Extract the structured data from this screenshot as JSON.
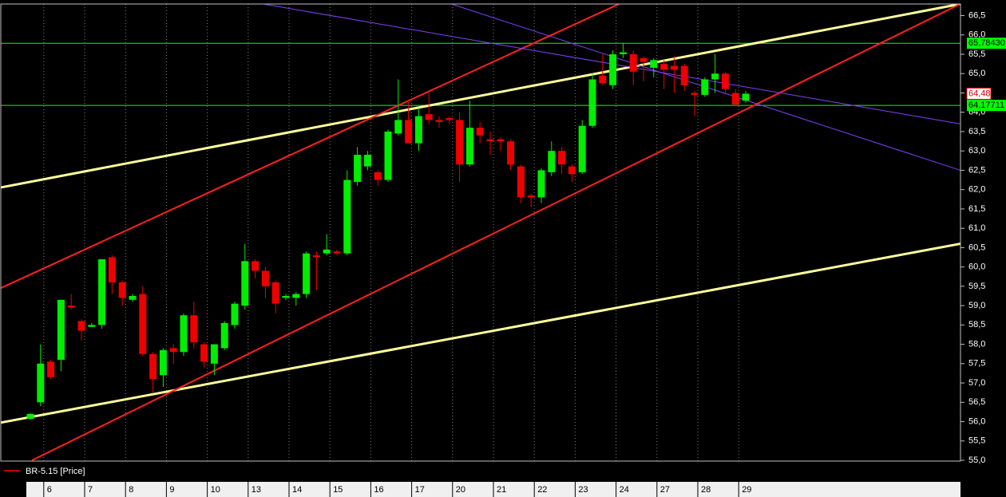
{
  "chart_data": {
    "type": "candlestick",
    "categories": [
      null,
      "6",
      null,
      null,
      null,
      "7",
      null,
      null,
      null,
      "8",
      null,
      null,
      null,
      "9",
      null,
      null,
      null,
      "10",
      null,
      null,
      null,
      "13",
      null,
      null,
      null,
      "14",
      null,
      null,
      null,
      "15",
      null,
      null,
      null,
      "16",
      null,
      null,
      null,
      "17",
      null,
      null,
      null,
      "20",
      null,
      null,
      null,
      "21",
      null,
      null,
      null,
      "22",
      null,
      null,
      null,
      "23",
      null,
      null,
      null,
      "24",
      null,
      null,
      null,
      "27",
      null,
      null,
      null,
      "28",
      null,
      null,
      null,
      "29",
      null
    ],
    "series": [
      {
        "name": "BR-5.15 [Price]",
        "color": "#ff0000",
        "up_color": "#00ee00",
        "down_color": "#ee0000",
        "open": [
          56.07,
          56.5,
          57.55,
          57.6,
          59.0,
          58.6,
          58.45,
          58.5,
          60.25,
          59.6,
          59.15,
          59.3,
          57.75,
          57.2,
          57.9,
          57.8,
          58.75,
          58.0,
          57.5,
          57.9,
          58.5,
          59.0,
          60.15,
          59.9,
          59.6,
          59.2,
          59.2,
          59.3,
          60.3,
          60.35,
          60.4,
          60.35,
          62.2,
          62.6,
          62.45,
          62.25,
          63.45,
          63.8,
          63.2,
          63.95,
          63.8,
          63.85,
          63.8,
          62.65,
          63.6,
          63.3,
          63.3,
          63.25,
          62.6,
          61.85,
          61.8,
          62.45,
          63.0,
          62.6,
          62.45,
          63.65,
          64.95,
          64.7,
          65.5,
          65.5,
          65.4,
          65.15,
          65.25,
          65.2,
          65.2,
          64.5,
          64.45,
          64.85,
          65.0,
          64.5,
          64.3
        ],
        "high": [
          56.22,
          58.0,
          57.6,
          59.15,
          59.3,
          58.65,
          58.55,
          60.2,
          60.3,
          59.65,
          59.3,
          59.5,
          57.8,
          57.9,
          58.0,
          58.8,
          59.1,
          58.05,
          58.0,
          58.6,
          59.1,
          60.6,
          60.2,
          60.0,
          59.65,
          59.3,
          59.35,
          60.4,
          60.4,
          60.85,
          60.45,
          62.5,
          63.1,
          63.0,
          62.5,
          63.55,
          64.85,
          64.3,
          64.1,
          64.5,
          63.9,
          63.9,
          64.0,
          64.3,
          63.75,
          63.5,
          63.35,
          63.3,
          62.65,
          61.9,
          62.55,
          63.25,
          63.1,
          62.65,
          63.8,
          65.0,
          65.5,
          65.6,
          65.8,
          65.6,
          65.45,
          65.4,
          65.35,
          65.45,
          65.25,
          64.55,
          64.9,
          65.5,
          65.05,
          64.6,
          64.55
        ],
        "low": [
          56.05,
          56.4,
          57.1,
          57.3,
          58.9,
          58.1,
          58.45,
          58.4,
          59.3,
          59.0,
          59.1,
          57.7,
          56.75,
          56.9,
          57.5,
          57.7,
          57.9,
          57.4,
          57.2,
          57.85,
          58.4,
          58.9,
          59.7,
          59.2,
          58.8,
          59.15,
          59.0,
          59.2,
          59.4,
          60.3,
          60.3,
          60.3,
          62.1,
          62.5,
          62.1,
          62.2,
          63.4,
          63.2,
          63.0,
          63.7,
          63.6,
          63.7,
          62.2,
          62.6,
          63.2,
          62.9,
          63.0,
          62.5,
          61.65,
          61.55,
          61.65,
          62.35,
          62.4,
          62.2,
          62.4,
          63.6,
          64.7,
          64.6,
          65.4,
          64.7,
          64.8,
          64.9,
          64.6,
          64.5,
          64.55,
          63.9,
          64.4,
          64.5,
          64.5,
          64.15,
          64.25
        ],
        "close": [
          56.2,
          57.5,
          57.15,
          59.15,
          58.95,
          58.35,
          58.5,
          60.2,
          59.6,
          59.2,
          59.25,
          57.75,
          57.1,
          57.85,
          57.8,
          58.75,
          58.05,
          57.55,
          58.0,
          58.55,
          59.05,
          60.15,
          59.9,
          59.5,
          59.05,
          59.25,
          59.3,
          60.35,
          60.25,
          60.45,
          60.35,
          62.25,
          62.9,
          62.9,
          62.25,
          63.5,
          63.8,
          63.2,
          63.9,
          63.8,
          63.75,
          63.8,
          62.65,
          63.6,
          63.4,
          63.25,
          63.25,
          62.65,
          61.8,
          61.8,
          62.5,
          63.0,
          62.65,
          62.4,
          63.65,
          64.85,
          64.75,
          65.5,
          65.55,
          65.05,
          65.3,
          65.35,
          65.1,
          65.1,
          64.7,
          64.45,
          64.85,
          65.0,
          64.6,
          64.2,
          64.48
        ]
      }
    ],
    "last_price": {
      "value": 64.48,
      "label": "64,48"
    },
    "levels": [
      {
        "value": 65.7843,
        "label": "65,78430",
        "color": "#00ff00"
      },
      {
        "value": 64.17711,
        "label": "64,17711",
        "color": "#00ff00"
      }
    ],
    "trendlines": [
      {
        "color": "#ffff99",
        "width": 3,
        "x": [
          -3,
          91
        ],
        "y": [
          62.05,
          66.8
        ]
      },
      {
        "color": "#ffff99",
        "width": 3,
        "x": [
          -3,
          91
        ],
        "y": [
          55.97,
          60.6
        ]
      },
      {
        "color": "#ff2020",
        "width": 2,
        "x": [
          -3,
          57.6
        ],
        "y": [
          59.44,
          66.8
        ]
      },
      {
        "color": "#ff2020",
        "width": 2,
        "x": [
          0.16,
          91
        ],
        "y": [
          55.0,
          66.8
        ]
      },
      {
        "color": "#8040ff",
        "width": 1,
        "x": [
          22.8,
          91
        ],
        "y": [
          66.8,
          63.7
        ]
      },
      {
        "color": "#8040ff",
        "width": 1,
        "x": [
          41.2,
          91
        ],
        "y": [
          66.8,
          62.5
        ]
      }
    ],
    "ylim": [
      55.0,
      66.8
    ],
    "yticks": [
      {
        "value": 55.0,
        "label": "55,0"
      },
      {
        "value": 55.5,
        "label": "55,5"
      },
      {
        "value": 56.0,
        "label": "56,0"
      },
      {
        "value": 56.5,
        "label": "56,5"
      },
      {
        "value": 57.0,
        "label": "57,0"
      },
      {
        "value": 57.5,
        "label": "57,5"
      },
      {
        "value": 58.0,
        "label": "58,0"
      },
      {
        "value": 58.5,
        "label": "58,5"
      },
      {
        "value": 59.0,
        "label": "59,0"
      },
      {
        "value": 59.5,
        "label": "59,5"
      },
      {
        "value": 60.0,
        "label": "60,0"
      },
      {
        "value": 60.5,
        "label": "60,5"
      },
      {
        "value": 61.0,
        "label": "61,0"
      },
      {
        "value": 61.5,
        "label": "61,5"
      },
      {
        "value": 62.0,
        "label": "62,0"
      },
      {
        "value": 62.5,
        "label": "62,5"
      },
      {
        "value": 63.0,
        "label": "63,0"
      },
      {
        "value": 63.5,
        "label": "63,5"
      },
      {
        "value": 64.0,
        "label": "64,0"
      },
      {
        "value": 64.5,
        "label": "64,5"
      },
      {
        "value": 65.0,
        "label": "65,0"
      },
      {
        "value": 65.5,
        "label": "65,5"
      },
      {
        "value": 66.0,
        "label": "66,0"
      },
      {
        "value": 66.5,
        "label": "66,5"
      }
    ],
    "grid": true
  }
}
